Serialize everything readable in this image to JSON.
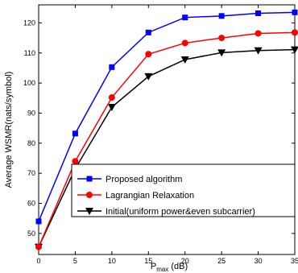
{
  "chart_data": {
    "type": "line",
    "title": "",
    "xlabel": "P",
    "xlabel_sub": "max",
    "xlabel_unit": " (dB)",
    "ylabel": "Average WSMR(nats/symbol)",
    "x": [
      0,
      5,
      10,
      15,
      20,
      25,
      30,
      35
    ],
    "xticks": [
      "0",
      "5",
      "10",
      "15",
      "20",
      "25",
      "30",
      "35"
    ],
    "yticks": [
      "50",
      "60",
      "70",
      "80",
      "90",
      "100",
      "110",
      "120"
    ],
    "xlim": [
      0,
      35
    ],
    "ylim": [
      43,
      126
    ],
    "grid": false,
    "legend_position": "bottom-right",
    "series": [
      {
        "name": "Proposed algorithm",
        "color": "#0000ff",
        "marker": "square",
        "values": [
          54,
          83.2,
          105.3,
          116.8,
          121.8,
          122.3,
          123.2,
          123.5
        ]
      },
      {
        "name": "Lagrangian Relaxation",
        "color": "#ff0000",
        "marker": "circle",
        "values": [
          45.5,
          74,
          95.2,
          109.6,
          113.3,
          115,
          116.5,
          116.8
        ]
      },
      {
        "name": "Initial(uniform power&even subcarrier)",
        "color": "#000000",
        "marker": "triangle-down",
        "values": [
          45.5,
          71.5,
          92,
          102.2,
          107.8,
          110.1,
          110.8,
          111.1
        ]
      }
    ]
  }
}
